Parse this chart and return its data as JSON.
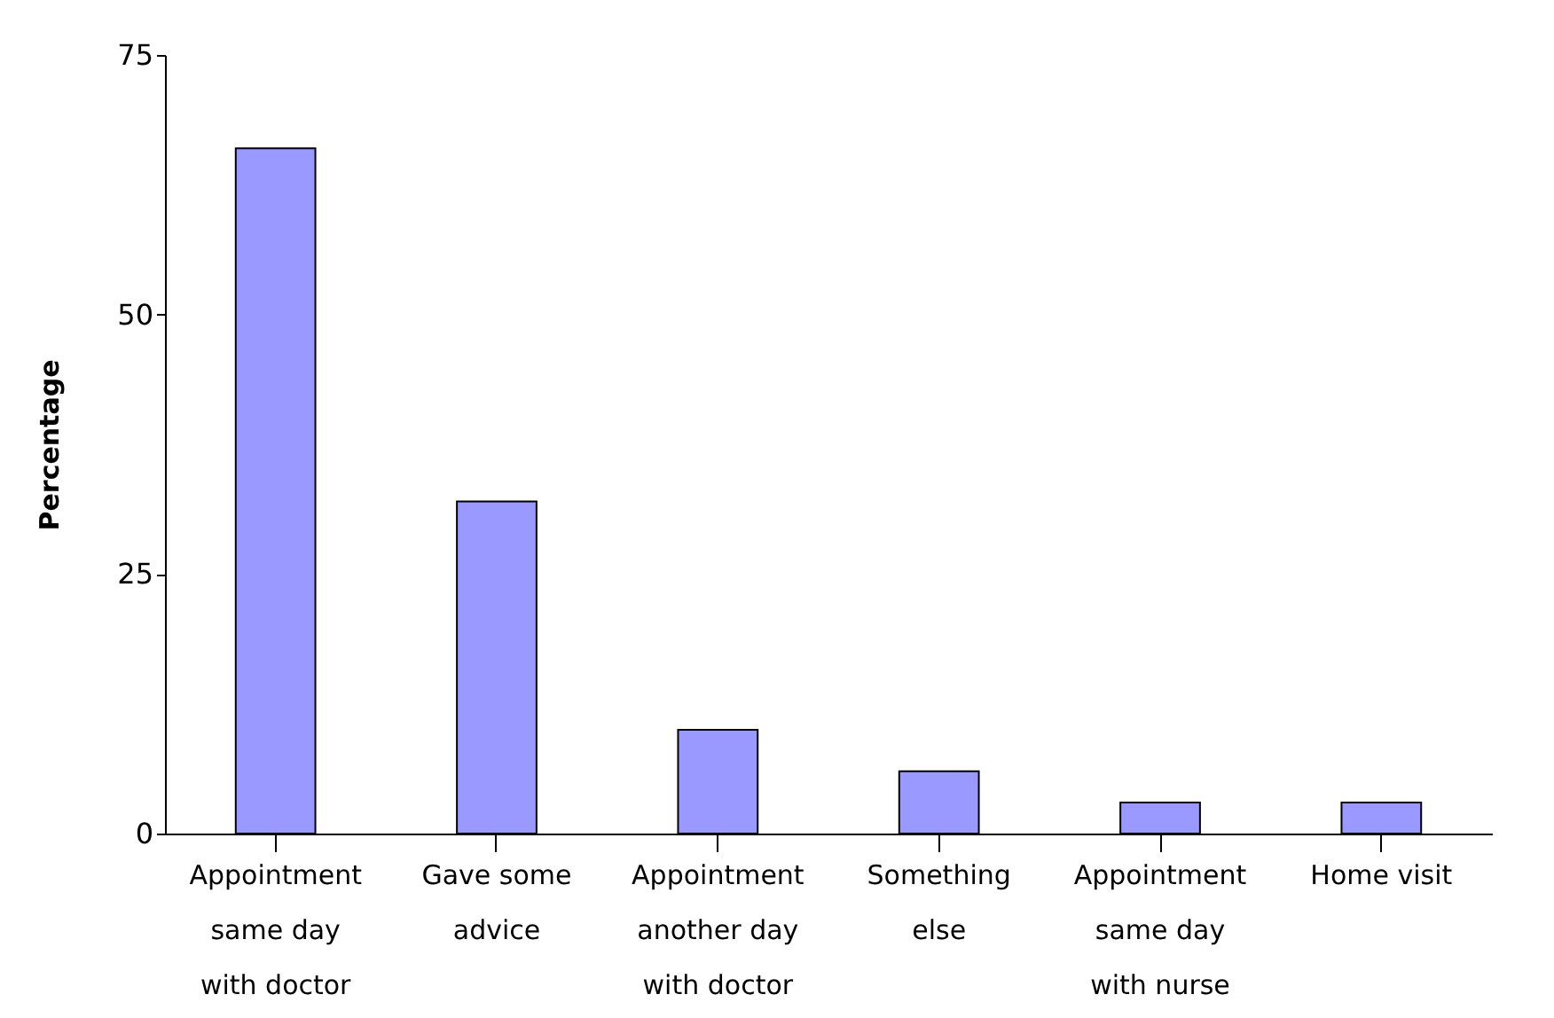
{
  "chart_data": {
    "type": "bar",
    "ylabel": "Percentage",
    "categories": [
      "Appointment same day with doctor",
      "Gave some advice",
      "Appointment another day with doctor",
      "Something else",
      "Appointment same day with nurse",
      "Home visit"
    ],
    "values": [
      66,
      32,
      10,
      6,
      3,
      3
    ],
    "color": "#9999ff",
    "ylim": [
      0,
      75
    ],
    "yticks": [
      0,
      25,
      50,
      75
    ],
    "grid": false
  }
}
